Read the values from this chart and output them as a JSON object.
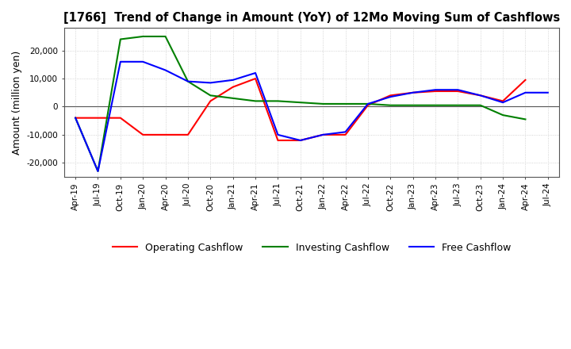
{
  "title": "[1766]  Trend of Change in Amount (YoY) of 12Mo Moving Sum of Cashflows",
  "ylabel": "Amount (million yen)",
  "x_labels": [
    "Apr-19",
    "Jul-19",
    "Oct-19",
    "Jan-20",
    "Apr-20",
    "Jul-20",
    "Oct-20",
    "Jan-21",
    "Apr-21",
    "Jul-21",
    "Oct-21",
    "Jan-22",
    "Apr-22",
    "Jul-22",
    "Oct-22",
    "Jan-23",
    "Apr-23",
    "Jul-23",
    "Oct-23",
    "Jan-24",
    "Apr-24",
    "Jul-24"
  ],
  "operating": [
    -4000,
    -4000,
    -4000,
    -10000,
    -10000,
    -10000,
    2000,
    7000,
    10000,
    -12000,
    -12000,
    -10000,
    -10000,
    500,
    4000,
    5000,
    5500,
    5500,
    4000,
    2000,
    9500,
    null
  ],
  "investing": [
    -4000,
    -23000,
    24000,
    25000,
    25000,
    9000,
    4000,
    3000,
    2000,
    2000,
    1500,
    1000,
    1000,
    1000,
    500,
    500,
    500,
    500,
    500,
    -3000,
    -4500,
    null
  ],
  "free": [
    -4000,
    -23000,
    16000,
    16000,
    13000,
    9000,
    8500,
    9500,
    12000,
    -10000,
    -12000,
    -10000,
    -9000,
    1000,
    3500,
    5000,
    6000,
    6000,
    4000,
    1500,
    5000,
    5000
  ],
  "colors": {
    "operating": "#ff0000",
    "investing": "#008000",
    "free": "#0000ff"
  },
  "ylim": [
    -25000,
    28000
  ],
  "yticks": [
    -20000,
    -10000,
    0,
    10000,
    20000
  ],
  "background": "#ffffff",
  "grid_color": "#c8c8c8",
  "grid_style": "dotted"
}
